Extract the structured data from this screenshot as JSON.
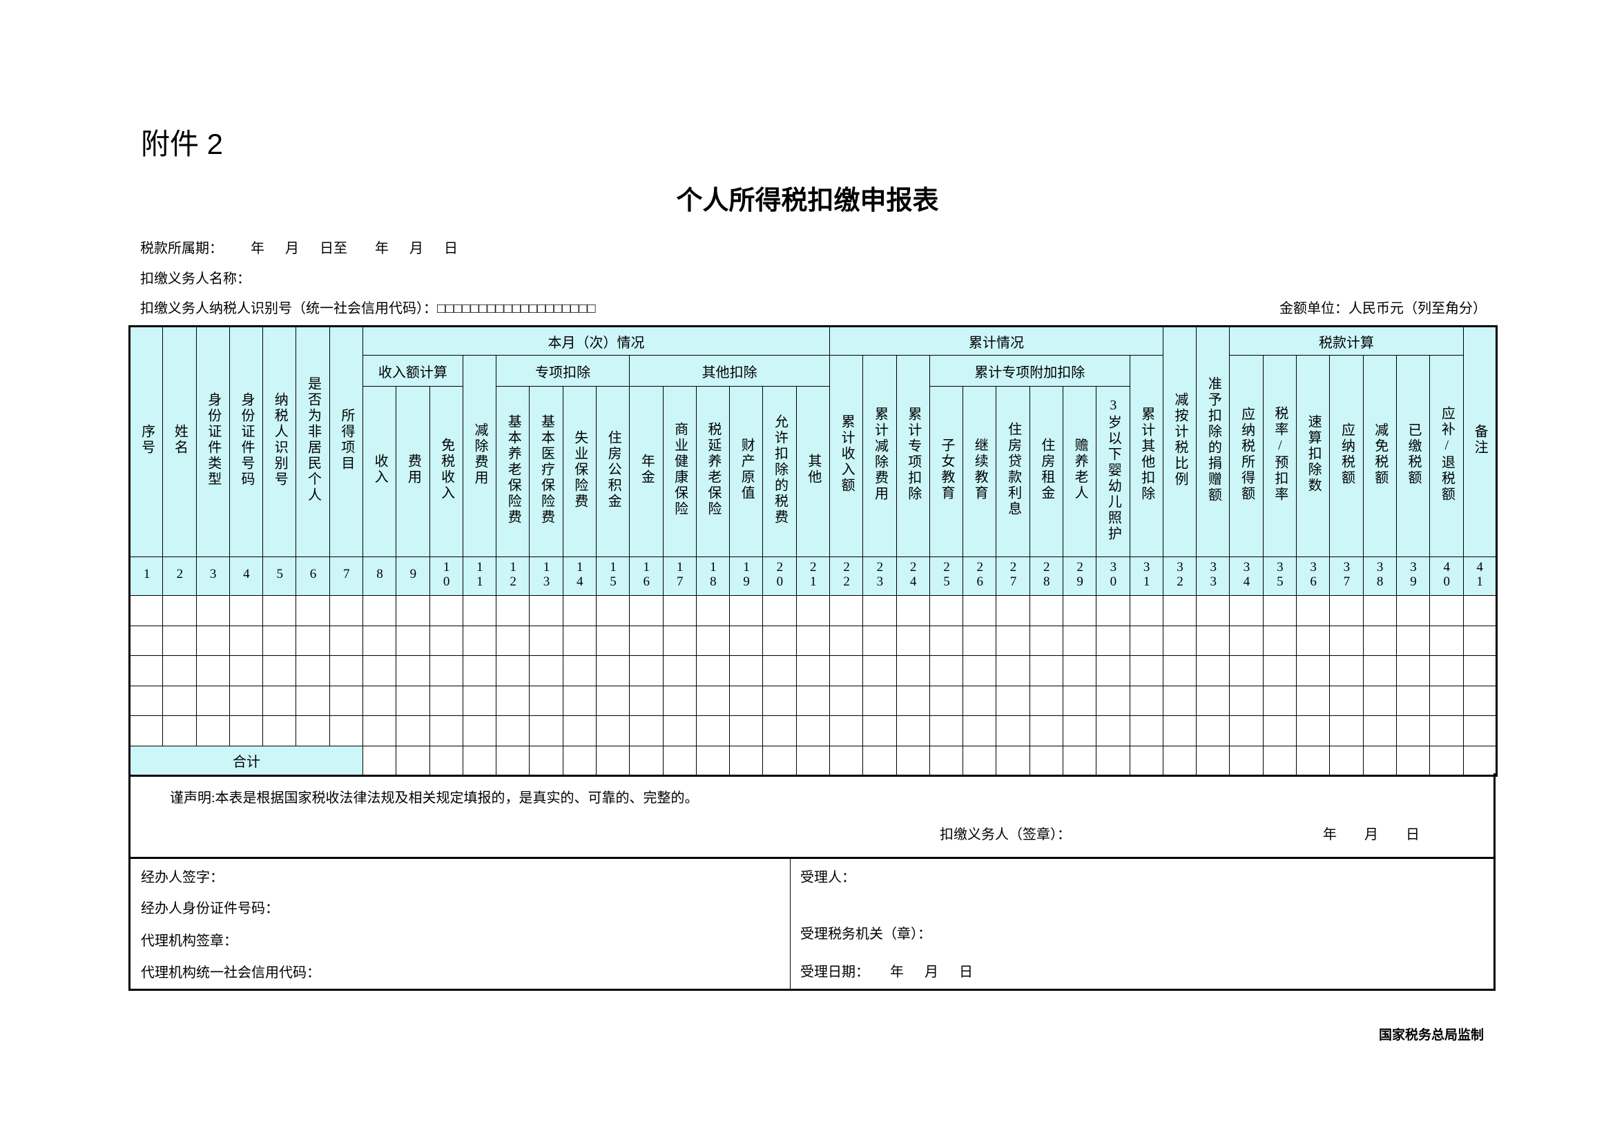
{
  "header": {
    "attachment": "附件 2",
    "title": "个人所得税扣缴申报表"
  },
  "meta": {
    "period": "税款所属期：        年      月      日至        年      月      日",
    "withholder_name": "扣缴义务人名称：",
    "withholder_id": "扣缴义务人纳税人识别号（统一社会信用代码）：□□□□□□□□□□□□□□□□□□□",
    "unit": "金额单位：人民币元（列至角分）"
  },
  "table": {
    "columns": [
      {
        "label": "序号"
      },
      {
        "label": "姓名"
      },
      {
        "label": "身份证件类型"
      },
      {
        "label": "身份证件号码"
      },
      {
        "label": "纳税人识别号"
      },
      {
        "label": "是否为非居民个人"
      },
      {
        "label": "所得项目"
      },
      {
        "label": "本月（次）情况",
        "children": [
          {
            "label": "收入额计算",
            "children": [
              {
                "label": "收入"
              },
              {
                "label": "费用"
              },
              {
                "label": "免税收入"
              }
            ]
          },
          {
            "label": "减除费用"
          },
          {
            "label": "专项扣除",
            "children": [
              {
                "label": "基本养老保险费"
              },
              {
                "label": "基本医疗保险费"
              },
              {
                "label": "失业保险费"
              },
              {
                "label": "住房公积金"
              }
            ]
          },
          {
            "label": "其他扣除",
            "children": [
              {
                "label": "年金"
              },
              {
                "label": "商业健康保险"
              },
              {
                "label": "税延养老保险"
              },
              {
                "label": "财产原值"
              },
              {
                "label": "允许扣除的税费"
              },
              {
                "label": "其他"
              }
            ]
          }
        ]
      },
      {
        "label": "累计情况",
        "children": [
          {
            "label": "累计收入额"
          },
          {
            "label": "累计减除费用"
          },
          {
            "label": "累计专项扣除"
          },
          {
            "label": "累计专项附加扣除",
            "children": [
              {
                "label": "子女教育"
              },
              {
                "label": "继续教育"
              },
              {
                "label": "住房贷款利息"
              },
              {
                "label": "住房租金"
              },
              {
                "label": "赡养老人"
              },
              {
                "label": "3岁以下婴幼儿照护"
              }
            ]
          },
          {
            "label": "累计其他扣除"
          }
        ]
      },
      {
        "label": "减按计税比例"
      },
      {
        "label": "准予扣除的捐赠额"
      },
      {
        "label": "税款计算",
        "children": [
          {
            "label": "应纳税所得额"
          },
          {
            "label": "税率/预扣率"
          },
          {
            "label": "速算扣除数"
          },
          {
            "label": "应纳税额"
          },
          {
            "label": "减免税额"
          },
          {
            "label": "已缴税额"
          },
          {
            "label": "应补/退税额"
          }
        ]
      },
      {
        "label": "备注"
      }
    ],
    "column_numbers": [
      1,
      2,
      3,
      4,
      5,
      6,
      7,
      8,
      9,
      10,
      11,
      12,
      13,
      14,
      15,
      16,
      17,
      18,
      19,
      20,
      21,
      22,
      23,
      24,
      25,
      26,
      27,
      28,
      29,
      30,
      31,
      32,
      33,
      34,
      35,
      36,
      37,
      38,
      39,
      40,
      41
    ],
    "total_label": "合计"
  },
  "declaration": {
    "text": "谨声明:本表是根据国家税收法律法规及相关规定填报的，是真实的、可靠的、完整的。",
    "signer": "扣缴义务人（签章）：",
    "date": "年        月        日"
  },
  "agent": {
    "signature": "经办人签字：",
    "id_number": "经办人身份证件号码：",
    "agency_seal": "代理机构签章：",
    "agency_code": "代理机构统一社会信用代码："
  },
  "acceptance": {
    "receiver": "受理人：",
    "office": "受理税务机关（章）：",
    "date": "受理日期：      年      月      日"
  },
  "footer": {
    "supervisor": "国家税务总局监制"
  }
}
